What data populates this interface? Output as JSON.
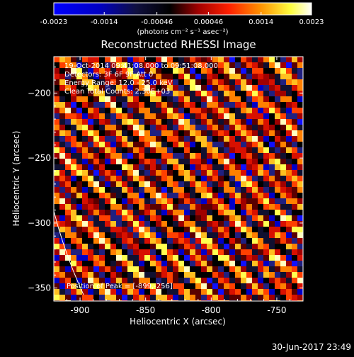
{
  "colorbar": {
    "tick_labels": [
      "-0.0023",
      "-0.0014",
      "-0.00046",
      "0.00046",
      "0.0014",
      "0.0023"
    ],
    "range": [
      -0.0023,
      0.0023
    ],
    "unit_label": "(photons cm⁻² s⁻¹ asec⁻²)"
  },
  "annotations": {
    "time_range": "19-Oct-2014 09:41:08.000 to 09:51:08.000",
    "detectors": "Detectors: 3F 6F 9F  Att 0",
    "energy": "Energy Range: 12.0 - 25.0 keV",
    "clean": "Clean    Total Counts: 2.30E+03",
    "peak": "Position of Peak = [-899,-256]"
  },
  "footer_timestamp": "30-Jun-2017 23:49",
  "chart_data": {
    "type": "heatmap",
    "title": "Reconstructed RHESSI Image",
    "xlabel": "Heliocentric X (arcsec)",
    "ylabel": "Heliocentric Y (arcsec)",
    "xlim": [
      -920,
      -730
    ],
    "ylim": [
      -360,
      -172
    ],
    "x_ticks": [
      -900,
      -850,
      -800,
      -750
    ],
    "y_ticks": [
      -200,
      -250,
      -300,
      -350
    ],
    "x_tick_labels": [
      "-900",
      "-850",
      "-800",
      "-750"
    ],
    "y_tick_labels": [
      "−200",
      "−250",
      "−300",
      "−350"
    ],
    "colormap": [
      "#0000ff",
      "#0a0a30",
      "#000000",
      "#a00000",
      "#ff3000",
      "#ff9000",
      "#ffff60",
      "#ffffff"
    ],
    "pattern": "diagonal stripes running from upper-left to lower-right",
    "peak_position": [
      -899,
      -256
    ],
    "limb_arc": [
      [
        -920,
        -290
      ],
      [
        -898,
        -352
      ]
    ]
  }
}
